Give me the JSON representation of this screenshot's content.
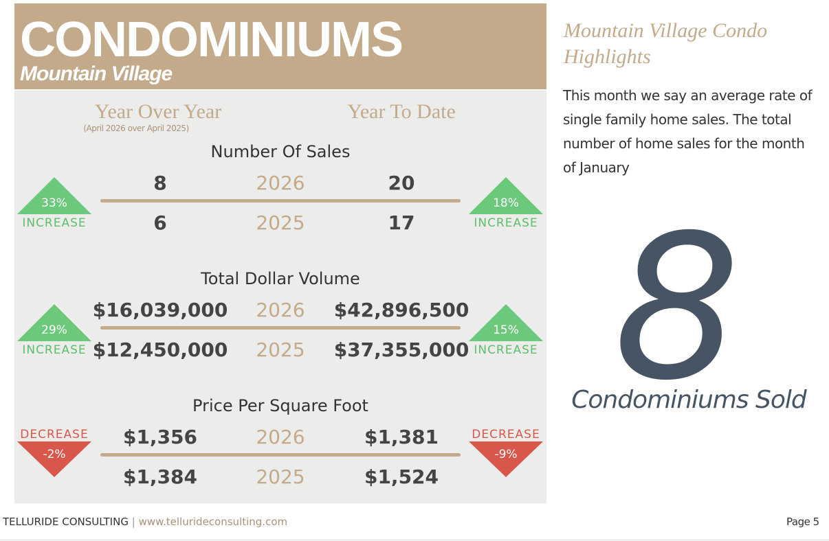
{
  "header": {
    "title": "CONDOMINIUMS",
    "subtitle": "Mountain Village"
  },
  "columns": {
    "yoy": "Year Over Year",
    "yoy_note": "(April 2026 over April 2025)",
    "ytd": "Year To Date"
  },
  "sections": [
    {
      "title": "Number Of Sales",
      "rows": [
        {
          "yoy": "8",
          "year": "2026",
          "ytd": "20"
        },
        {
          "yoy": "6",
          "year": "2025",
          "ytd": "17"
        }
      ],
      "yoy_change": {
        "value": "33%",
        "label": "INCREASE"
      },
      "ytd_change": {
        "value": "18%",
        "label": "INCREASE"
      }
    },
    {
      "title": "Total Dollar Volume",
      "rows": [
        {
          "yoy": "$16,039,000",
          "year": "2026",
          "ytd": "$42,896,500"
        },
        {
          "yoy": "$12,450,000",
          "year": "2025",
          "ytd": "$37,355,000"
        }
      ],
      "yoy_change": {
        "value": "29%",
        "label": "INCREASE"
      },
      "ytd_change": {
        "value": "15%",
        "label": "INCREASE"
      }
    },
    {
      "title": "Price Per Square Foot",
      "rows": [
        {
          "yoy": "$1,356",
          "year": "2026",
          "ytd": "$1,381"
        },
        {
          "yoy": "$1,384",
          "year": "2025",
          "ytd": "$1,524"
        }
      ],
      "yoy_change": {
        "value": "-2%",
        "label": "DECREASE"
      },
      "ytd_change": {
        "value": "-9%",
        "label": "DECREASE"
      }
    }
  ],
  "sidebar": {
    "title": "Mountain Village Condo Highlights",
    "body": "This month we say an average rate of single family home sales. The total number of home sales for the month of January",
    "big_number": "8",
    "big_label": "Condominiums Sold"
  },
  "footer": {
    "company": "TELLURIDE CONSULTING",
    "separator": "|",
    "url": "www.tellurideconsulting.com",
    "page": "Page 5"
  }
}
